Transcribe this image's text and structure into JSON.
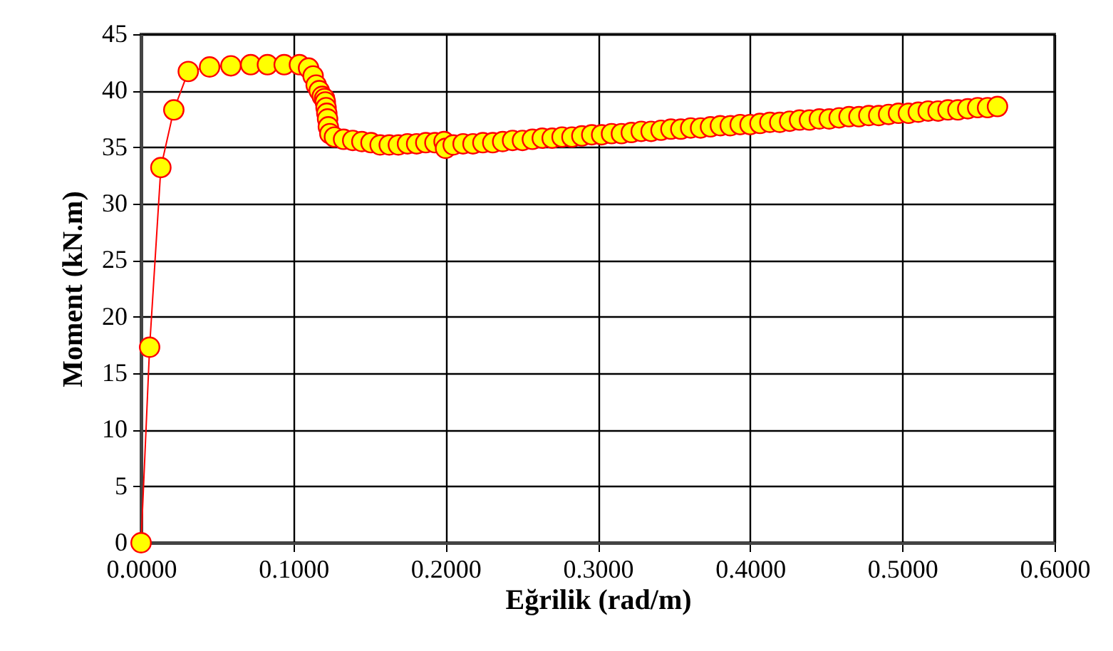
{
  "chart_data": {
    "type": "line",
    "xlabel": "Eğrilik (rad/m)",
    "ylabel": "Moment (kN.m)",
    "marker": "circle",
    "grid": true,
    "xlim": [
      0,
      0.6
    ],
    "xticks": [
      {
        "value": 0,
        "label": "0.0000"
      },
      {
        "value": 0.1,
        "label": "0.1000"
      },
      {
        "value": 0.2,
        "label": "0.2000"
      },
      {
        "value": 0.3,
        "label": "0.3000"
      },
      {
        "value": 0.4,
        "label": "0.4000"
      },
      {
        "value": 0.5,
        "label": "0.5000"
      },
      {
        "value": 0.6,
        "label": "0.6000"
      }
    ],
    "ylim": [
      0,
      45
    ],
    "yticks": [
      0,
      5,
      10,
      15,
      20,
      25,
      30,
      35,
      40,
      45
    ],
    "series": [
      {
        "color": "#ff0000",
        "x": [
          0,
          0.0056,
          0.013,
          0.0215,
          0.031,
          0.045,
          0.059,
          0.072,
          0.083,
          0.094,
          0.104,
          0.11,
          0.113,
          0.115,
          0.117,
          0.119,
          0.1205,
          0.121,
          0.1215,
          0.122,
          0.1225,
          0.123,
          0.124,
          0.127,
          0.133,
          0.139,
          0.145,
          0.151,
          0.157,
          0.163,
          0.169,
          0.175,
          0.181,
          0.187,
          0.193,
          0.199,
          0.2,
          0.205,
          0.2115,
          0.218,
          0.2245,
          0.231,
          0.2375,
          0.244,
          0.2505,
          0.257,
          0.2635,
          0.27,
          0.2765,
          0.283,
          0.2895,
          0.296,
          0.3025,
          0.309,
          0.3155,
          0.322,
          0.3285,
          0.335,
          0.3415,
          0.348,
          0.3545,
          0.361,
          0.3675,
          0.374,
          0.3805,
          0.387,
          0.3935,
          0.4,
          0.4065,
          0.413,
          0.4195,
          0.426,
          0.4325,
          0.439,
          0.4455,
          0.452,
          0.4585,
          0.465,
          0.4715,
          0.478,
          0.4845,
          0.491,
          0.4975,
          0.504,
          0.5105,
          0.517,
          0.5235,
          0.53,
          0.5365,
          0.543,
          0.5495,
          0.556,
          0.5625
        ],
        "values": [
          0,
          17.3,
          33.2,
          38.3,
          41.7,
          42.1,
          42.2,
          42.3,
          42.3,
          42.3,
          42.3,
          42,
          41.3,
          40.5,
          40,
          39.5,
          39.3,
          39,
          38.5,
          38,
          37.5,
          36.8,
          36.2,
          35.9,
          35.7,
          35.6,
          35.5,
          35.4,
          35.2,
          35.2,
          35.2,
          35.3,
          35.3,
          35.4,
          35.4,
          35.5,
          34.9,
          35.2,
          35.3,
          35.3,
          35.4,
          35.4,
          35.5,
          35.6,
          35.6,
          35.7,
          35.8,
          35.8,
          35.9,
          35.9,
          36,
          36.1,
          36.1,
          36.2,
          36.2,
          36.3,
          36.4,
          36.4,
          36.5,
          36.6,
          36.6,
          36.7,
          36.7,
          36.8,
          36.9,
          36.9,
          37,
          37,
          37.1,
          37.2,
          37.2,
          37.3,
          37.4,
          37.4,
          37.5,
          37.5,
          37.6,
          37.7,
          37.7,
          37.8,
          37.8,
          37.9,
          38,
          38,
          38.1,
          38.2,
          38.2,
          38.3,
          38.3,
          38.4,
          38.5,
          38.5,
          38.6
        ]
      }
    ]
  }
}
